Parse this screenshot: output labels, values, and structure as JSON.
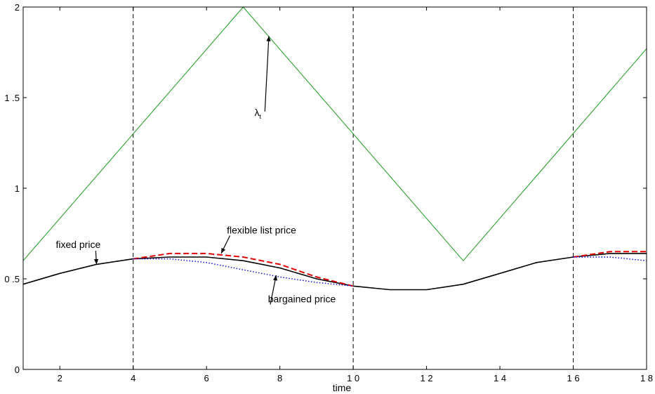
{
  "chart_data": {
    "type": "line",
    "xlabel": "time",
    "ylabel": "",
    "title": "",
    "xlim": [
      1,
      18
    ],
    "ylim": [
      0,
      2
    ],
    "xticks": [
      2,
      4,
      6,
      8,
      10,
      12,
      14,
      16,
      18
    ],
    "xtick_labels": [
      "2",
      "4",
      "6",
      "8",
      "1 0",
      "1 2",
      "1 4",
      "1 6",
      "1 8"
    ],
    "yticks": [
      0,
      0.5,
      1,
      1.5,
      2
    ],
    "ytick_labels": [
      "0",
      "0 .5",
      "1",
      "1 .5",
      "2"
    ],
    "grid": false,
    "vertical_lines": [
      4,
      10,
      16
    ],
    "series": [
      {
        "name": "λ_t",
        "color": "#1a9a1a",
        "style": "solid",
        "x": [
          1,
          7,
          10,
          13,
          18
        ],
        "y": [
          0.6,
          2.0,
          1.3,
          0.6,
          1.77
        ]
      },
      {
        "name": "fixed price",
        "color": "#000000",
        "style": "solid",
        "x": [
          1,
          2,
          3,
          4,
          5,
          6,
          7,
          8,
          9,
          10,
          11,
          12,
          13,
          14,
          15,
          16,
          17,
          18
        ],
        "y": [
          0.47,
          0.53,
          0.58,
          0.61,
          0.62,
          0.62,
          0.6,
          0.56,
          0.5,
          0.46,
          0.44,
          0.44,
          0.47,
          0.53,
          0.59,
          0.62,
          0.64,
          0.64
        ]
      },
      {
        "name": "flexible list price",
        "color": "#e00000",
        "style": "dashed",
        "x": [
          4,
          5,
          6,
          7,
          8,
          9,
          10,
          16,
          17,
          18
        ],
        "y": [
          0.61,
          0.64,
          0.64,
          0.62,
          0.58,
          0.51,
          0.46,
          0.62,
          0.65,
          0.65
        ]
      },
      {
        "name": "bargained price",
        "color": "#0000e0",
        "style": "dotted",
        "x": [
          4,
          5,
          6,
          7,
          8,
          9,
          10,
          16,
          17,
          18
        ],
        "y": [
          0.61,
          0.61,
          0.59,
          0.55,
          0.51,
          0.48,
          0.46,
          0.62,
          0.62,
          0.6
        ]
      }
    ],
    "annotations": [
      {
        "text": "fixed price",
        "text_at": [
          2.5,
          0.67
        ],
        "arrow_to": [
          3.0,
          0.58
        ]
      },
      {
        "text": "flexible list price",
        "text_at": [
          7.5,
          0.75
        ],
        "arrow_to": [
          6.4,
          0.64
        ]
      },
      {
        "text": "bargained price",
        "text_at": [
          8.6,
          0.37
        ],
        "arrow_to": [
          7.9,
          0.52
        ]
      },
      {
        "text": "λ",
        "sub": "t",
        "text_at": [
          7.4,
          1.4
        ],
        "arrow_to": [
          7.7,
          1.84
        ]
      }
    ]
  }
}
